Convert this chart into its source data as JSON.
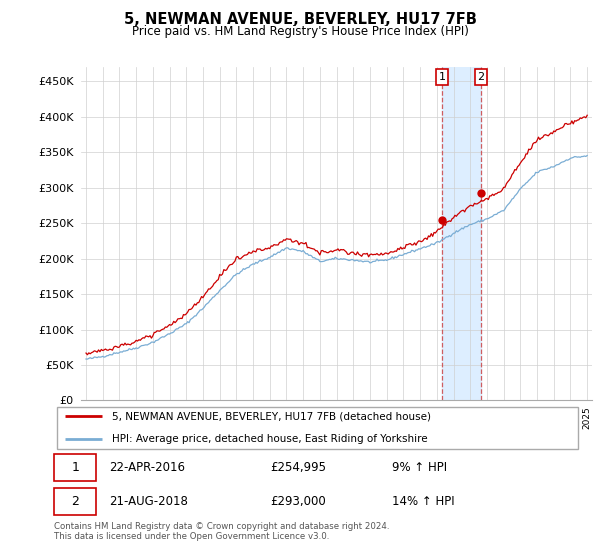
{
  "title": "5, NEWMAN AVENUE, BEVERLEY, HU17 7FB",
  "subtitle": "Price paid vs. HM Land Registry's House Price Index (HPI)",
  "ylim": [
    0,
    470000
  ],
  "yticks": [
    0,
    50000,
    100000,
    150000,
    200000,
    250000,
    300000,
    350000,
    400000,
    450000
  ],
  "sale1_date_num": 2016.31,
  "sale1_label": "1",
  "sale1_price": 254995,
  "sale1_text": "22-APR-2016",
  "sale1_pct": "9%",
  "sale2_date_num": 2018.64,
  "sale2_label": "2",
  "sale2_price": 293000,
  "sale2_text": "21-AUG-2018",
  "sale2_pct": "14%",
  "property_color": "#cc0000",
  "hpi_color": "#7aadd4",
  "shading_color": "#ddeeff",
  "legend_label1": "5, NEWMAN AVENUE, BEVERLEY, HU17 7FB (detached house)",
  "legend_label2": "HPI: Average price, detached house, East Riding of Yorkshire",
  "footnote": "Contains HM Land Registry data © Crown copyright and database right 2024.\nThis data is licensed under the Open Government Licence v3.0.",
  "xlim_left": 1994.7,
  "xlim_right": 2025.3
}
